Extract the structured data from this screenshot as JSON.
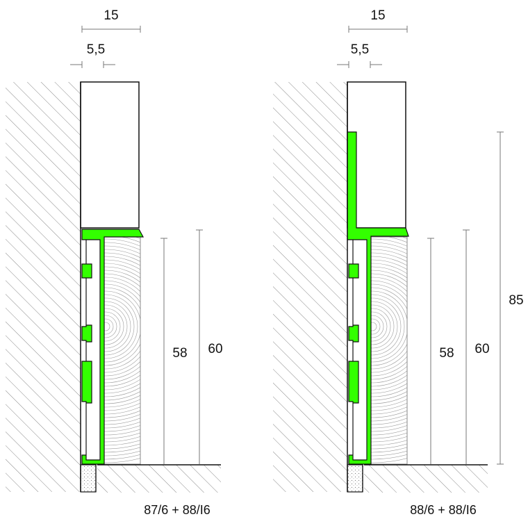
{
  "left_detail": {
    "caption": "87/6 + 88/I6",
    "dimensions": {
      "top_width": "15",
      "inner_width": "5,5",
      "height_inner": "58",
      "height_outer": "60"
    }
  },
  "right_detail": {
    "caption": "88/6 + 88/I6",
    "dimensions": {
      "top_width": "15",
      "inner_width": "5,5",
      "height_inner": "58",
      "height_outer": "60",
      "height_total": "85"
    }
  },
  "colors": {
    "profile": "#33ff00",
    "line": "#111111",
    "hatch": "#888888",
    "dim_line": "#777777"
  }
}
